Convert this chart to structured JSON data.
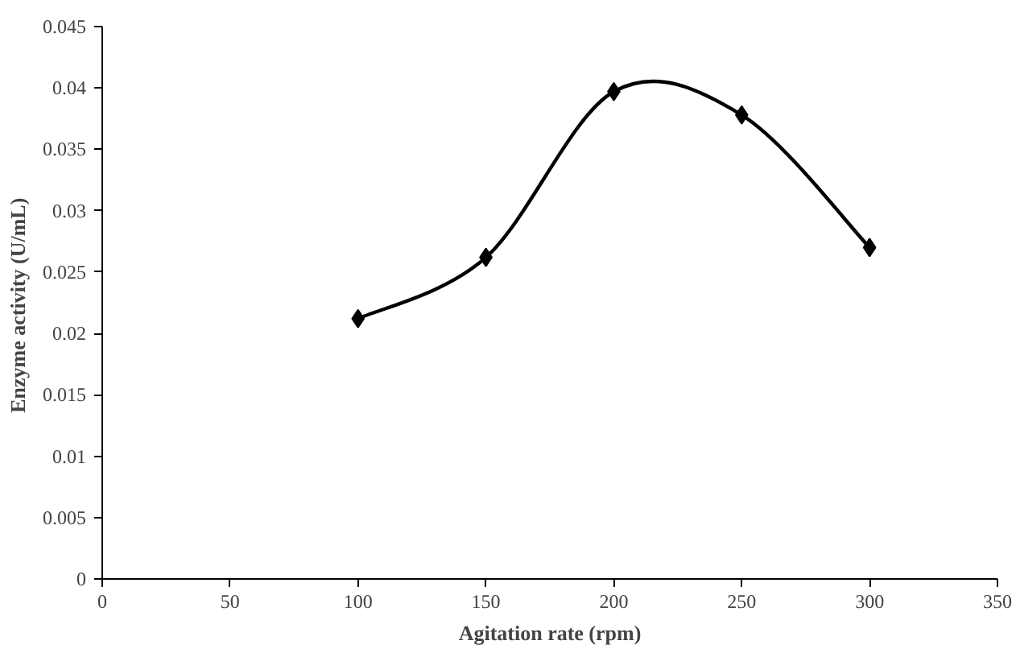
{
  "chart_data": {
    "type": "line",
    "xlabel": "Agitation rate (rpm)",
    "ylabel": "Enzyme activity  (U/mL)",
    "x": [
      100,
      150,
      200,
      250,
      300
    ],
    "series": [
      {
        "color": "#000000",
        "values": [
          0.0212,
          0.0262,
          0.0397,
          0.0378,
          0.027
        ]
      }
    ],
    "xlim": [
      0,
      350
    ],
    "xticks": [
      0,
      50,
      100,
      150,
      200,
      250,
      300,
      350
    ],
    "ylim": [
      0,
      0.045
    ],
    "yticks": [
      0,
      0.005,
      0.01,
      0.015,
      0.02,
      0.025,
      0.03,
      0.035,
      0.04,
      0.045
    ],
    "marker": "diamond",
    "line_style": "solid",
    "grid": false
  }
}
